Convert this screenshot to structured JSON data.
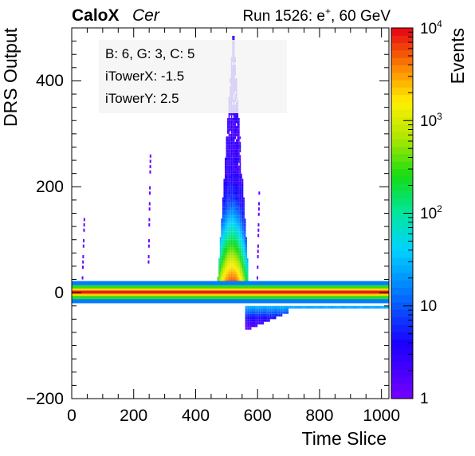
{
  "header": {
    "brand": "CaloX",
    "channel": "Cer",
    "run_prefix": "Run 1526: e",
    "run_sup": "+",
    "run_suffix": ", 60 GeV"
  },
  "info_box": {
    "line1": "B: 6, G: 3, C: 5",
    "line2": "iTowerX: -1.5",
    "line3": "iTowerY: 2.5"
  },
  "chart_data": {
    "type": "heatmap",
    "title": "",
    "xlabel": "Time Slice",
    "ylabel": "DRS Output",
    "zlabel": "Events",
    "xlim": [
      0,
      1024
    ],
    "ylim": [
      -200,
      500
    ],
    "zlim": [
      1,
      10000
    ],
    "z_log_scale": true,
    "x_ticks": [
      0,
      200,
      400,
      600,
      800,
      1000
    ],
    "x_tick_labels": [
      "0",
      "200",
      "400",
      "600",
      "800",
      "1000"
    ],
    "y_ticks": [
      -200,
      0,
      200,
      400
    ],
    "y_tick_labels": [
      "−200",
      "0",
      "200",
      "400"
    ],
    "z_ticks": [
      1,
      10,
      100,
      1000,
      10000
    ],
    "z_tick_labels": [
      {
        "base": "1",
        "exp": ""
      },
      {
        "base": "10",
        "exp": ""
      },
      {
        "base": "10",
        "exp": "2"
      },
      {
        "base": "10",
        "exp": "3"
      },
      {
        "base": "10",
        "exp": "4"
      }
    ],
    "pedestal_band": [
      {
        "x": [
          0,
          1024
        ],
        "y": [
          -2,
          4
        ],
        "z": 8000
      },
      {
        "x": [
          0,
          1024
        ],
        "y": [
          4,
          8
        ],
        "z": 2000
      },
      {
        "x": [
          0,
          1024
        ],
        "y": [
          -6,
          -2
        ],
        "z": 2000
      },
      {
        "x": [
          0,
          1024
        ],
        "y": [
          8,
          14
        ],
        "z": 300
      },
      {
        "x": [
          0,
          1024
        ],
        "y": [
          -12,
          -6
        ],
        "z": 300
      },
      {
        "x": [
          0,
          1024
        ],
        "y": [
          14,
          22
        ],
        "z": 15
      },
      {
        "x": [
          0,
          1024
        ],
        "y": [
          -20,
          -12
        ],
        "z": 15
      }
    ],
    "pulse_x_range": [
      470,
      570
    ],
    "pulse_peak_x": 520,
    "pulse_max_y": 500,
    "undershoot_x_range": [
      560,
      1024
    ],
    "undershoot_min_y": -70,
    "secondary_spikes": [
      {
        "x": 35,
        "max_y": 150
      },
      {
        "x": 248,
        "max_y": 265
      },
      {
        "x": 600,
        "max_y": 215
      }
    ]
  }
}
